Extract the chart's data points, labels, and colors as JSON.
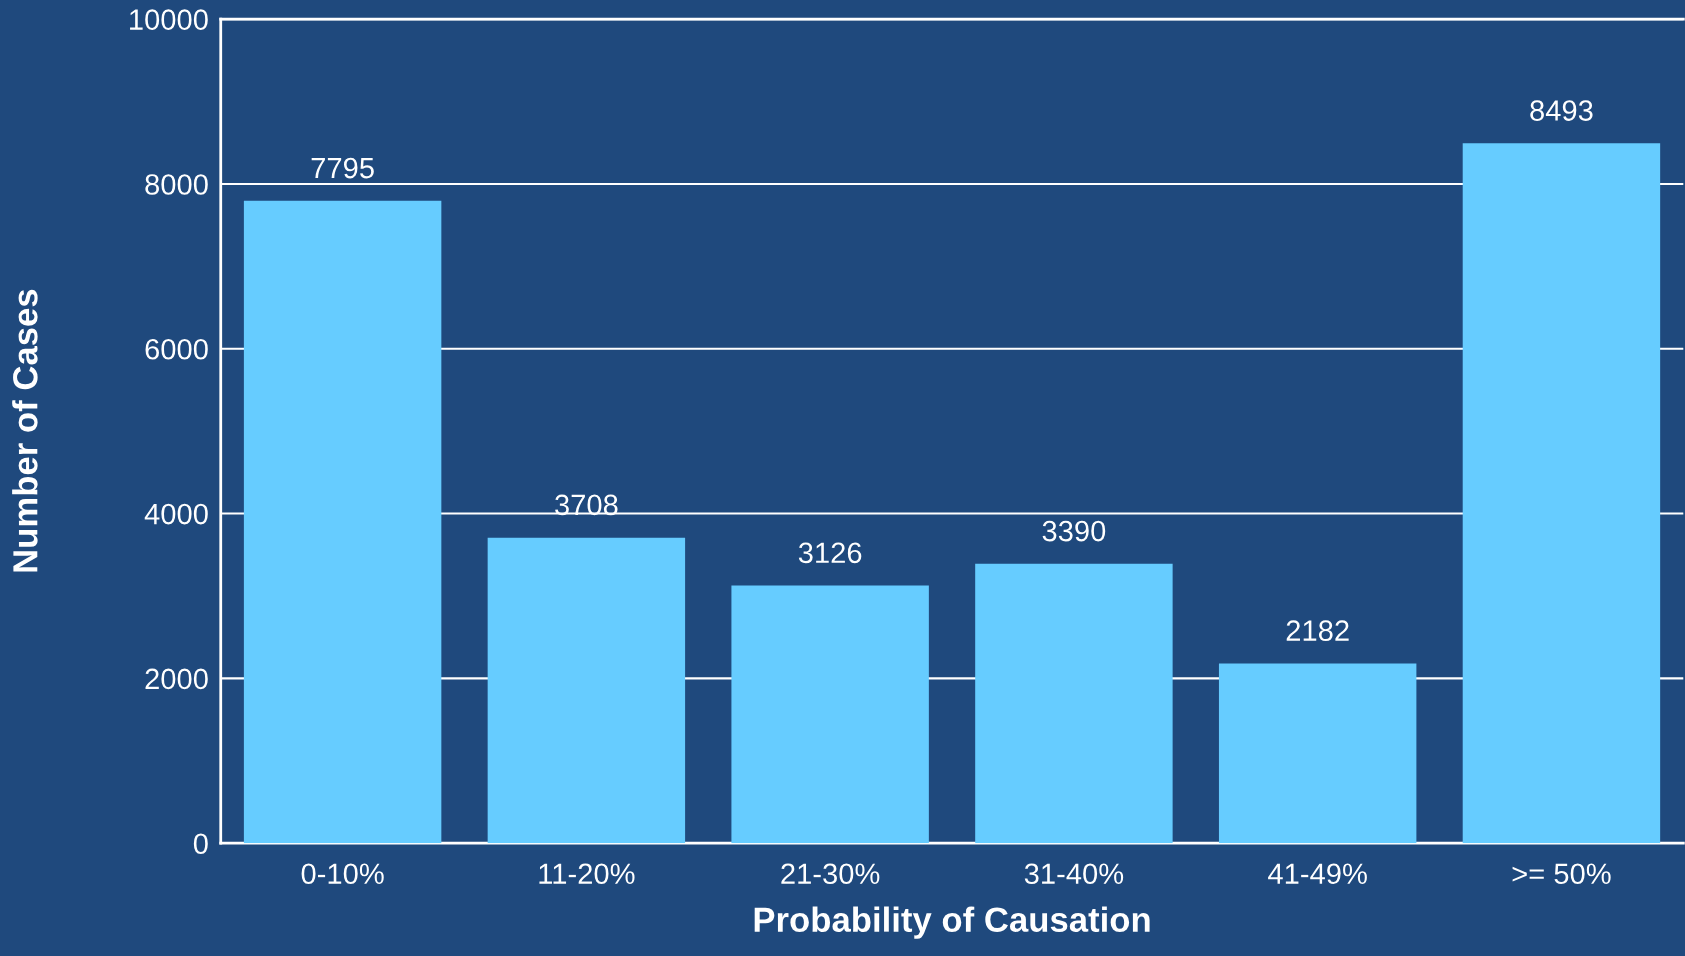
{
  "chart_data": {
    "type": "bar",
    "xlabel": "Probability of Causation",
    "ylabel": "Number of Cases",
    "categories": [
      "0-10%",
      "11-20%",
      "21-30%",
      "31-40%",
      "41-49%",
      ">= 50%"
    ],
    "values": [
      7795,
      3708,
      3126,
      3390,
      2182,
      8493
    ],
    "color": "#66ccff",
    "data_labels": true,
    "ylim": [
      0,
      10000
    ],
    "yticks": [
      0,
      2000,
      4000,
      6000,
      8000,
      10000
    ],
    "grid": "y"
  }
}
